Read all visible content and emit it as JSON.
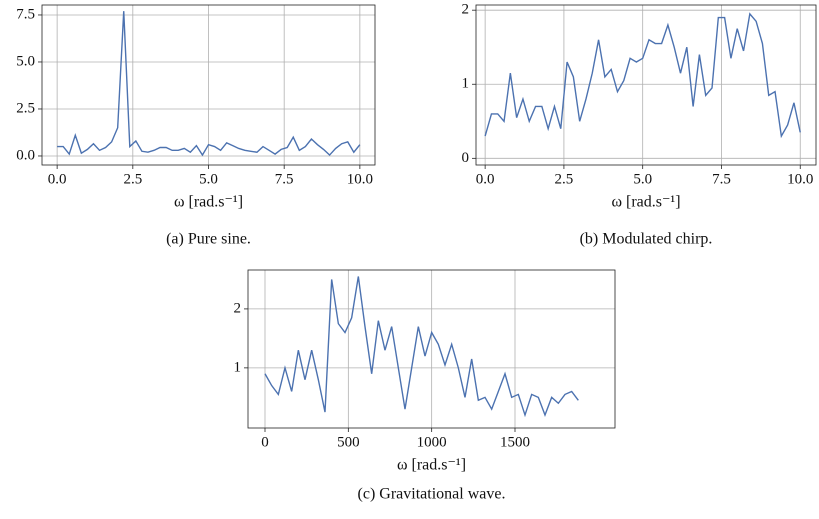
{
  "chart_data": [
    {
      "type": "line",
      "color": "#4c72b0",
      "grid": true,
      "x": [
        0,
        0.2,
        0.4,
        0.6,
        0.8,
        1,
        1.2,
        1.4,
        1.6,
        1.8,
        2,
        2.2,
        2.4,
        2.6,
        2.8,
        3,
        3.2,
        3.4,
        3.6,
        3.8,
        4,
        4.2,
        4.4,
        4.6,
        4.8,
        5,
        5.2,
        5.4,
        5.6,
        5.8,
        6,
        6.2,
        6.4,
        6.6,
        6.8,
        7,
        7.2,
        7.4,
        7.6,
        7.8,
        8,
        8.2,
        8.4,
        8.6,
        8.8,
        9,
        9.2,
        9.4,
        9.6,
        9.8,
        10
      ],
      "values": [
        0.5,
        0.5,
        0.1,
        1.1,
        0.15,
        0.35,
        0.65,
        0.3,
        0.45,
        0.75,
        1.5,
        7.7,
        0.5,
        0.8,
        0.25,
        0.2,
        0.3,
        0.45,
        0.45,
        0.3,
        0.3,
        0.4,
        0.2,
        0.55,
        0.05,
        0.6,
        0.5,
        0.3,
        0.7,
        0.55,
        0.4,
        0.3,
        0.25,
        0.2,
        0.5,
        0.3,
        0.1,
        0.35,
        0.45,
        1.0,
        0.3,
        0.5,
        0.9,
        0.6,
        0.35,
        0.05,
        0.4,
        0.65,
        0.75,
        0.2,
        0.6
      ],
      "xlim": [
        -0.5,
        10.5
      ],
      "ylim": [
        -0.48,
        8.03
      ],
      "xticks": [
        {
          "value": 0,
          "label": "0.0"
        },
        {
          "value": 2.5,
          "label": "2.5"
        },
        {
          "value": 5,
          "label": "5.0"
        },
        {
          "value": 7.5,
          "label": "7.5"
        },
        {
          "value": 10,
          "label": "10.0"
        }
      ],
      "yticks": [
        {
          "value": 0,
          "label": "0.0"
        },
        {
          "value": 2.5,
          "label": "2.5"
        },
        {
          "value": 5,
          "label": "5.0"
        },
        {
          "value": 7.5,
          "label": "7.5"
        }
      ],
      "xlabel": "ω [rad.s⁻¹]",
      "caption": "(a) Pure sine."
    },
    {
      "type": "line",
      "color": "#4c72b0",
      "grid": true,
      "x": [
        0,
        0.2,
        0.4,
        0.6,
        0.8,
        1,
        1.2,
        1.4,
        1.6,
        1.8,
        2,
        2.2,
        2.4,
        2.6,
        2.8,
        3,
        3.2,
        3.4,
        3.6,
        3.8,
        4,
        4.2,
        4.4,
        4.6,
        4.8,
        5,
        5.2,
        5.4,
        5.6,
        5.8,
        6,
        6.2,
        6.4,
        6.6,
        6.8,
        7,
        7.2,
        7.4,
        7.6,
        7.8,
        8,
        8.2,
        8.4,
        8.6,
        8.8,
        9,
        9.2,
        9.4,
        9.6,
        9.8,
        10
      ],
      "values": [
        0.3,
        0.6,
        0.6,
        0.5,
        1.15,
        0.55,
        0.8,
        0.5,
        0.7,
        0.7,
        0.4,
        0.7,
        0.4,
        1.3,
        1.1,
        0.5,
        0.8,
        1.15,
        1.6,
        1.1,
        1.2,
        0.9,
        1.05,
        1.35,
        1.3,
        1.35,
        1.6,
        1.55,
        1.55,
        1.8,
        1.5,
        1.15,
        1.5,
        0.7,
        1.4,
        0.85,
        0.95,
        1.9,
        1.9,
        1.35,
        1.75,
        1.45,
        1.95,
        1.85,
        1.55,
        0.85,
        0.9,
        0.3,
        0.45,
        0.75,
        0.35
      ],
      "xlim": [
        -0.29,
        10.5
      ],
      "ylim": [
        -0.09,
        2.07
      ],
      "xticks": [
        {
          "value": 0,
          "label": "0.0"
        },
        {
          "value": 2.5,
          "label": "2.5"
        },
        {
          "value": 5,
          "label": "5.0"
        },
        {
          "value": 7.5,
          "label": "7.5"
        },
        {
          "value": 10,
          "label": "10.0"
        }
      ],
      "yticks": [
        0,
        1,
        2
      ],
      "xlabel": "ω [rad.s⁻¹]",
      "caption": "(b) Modulated chirp."
    },
    {
      "type": "line",
      "color": "#4c72b0",
      "grid": true,
      "x": [
        0,
        40,
        80,
        120,
        160,
        200,
        240,
        280,
        320,
        360,
        400,
        440,
        480,
        520,
        560,
        600,
        640,
        680,
        720,
        760,
        800,
        840,
        880,
        920,
        960,
        1000,
        1040,
        1080,
        1120,
        1160,
        1200,
        1240,
        1280,
        1320,
        1360,
        1400,
        1440,
        1480,
        1520,
        1560,
        1600,
        1640,
        1680,
        1720,
        1760,
        1800,
        1840,
        1880
      ],
      "values": [
        0.9,
        0.7,
        0.55,
        1.0,
        0.6,
        1.3,
        0.8,
        1.3,
        0.8,
        0.25,
        2.5,
        1.75,
        1.6,
        1.85,
        2.55,
        1.7,
        0.9,
        1.8,
        1.3,
        1.7,
        1.0,
        0.3,
        1.0,
        1.7,
        1.2,
        1.6,
        1.4,
        1.05,
        1.4,
        1.0,
        0.5,
        1.15,
        0.45,
        0.5,
        0.3,
        0.6,
        0.9,
        0.5,
        0.55,
        0.2,
        0.55,
        0.5,
        0.2,
        0.5,
        0.4,
        0.55,
        0.6,
        0.45
      ],
      "xlim": [
        -102,
        2100
      ],
      "ylim": [
        -0.02,
        2.66
      ],
      "xticks": [
        0,
        500,
        1000,
        1500
      ],
      "yticks": [
        1,
        2
      ],
      "xlabel": "ω [rad.s⁻¹]",
      "caption": "(c) Gravitational wave."
    }
  ]
}
